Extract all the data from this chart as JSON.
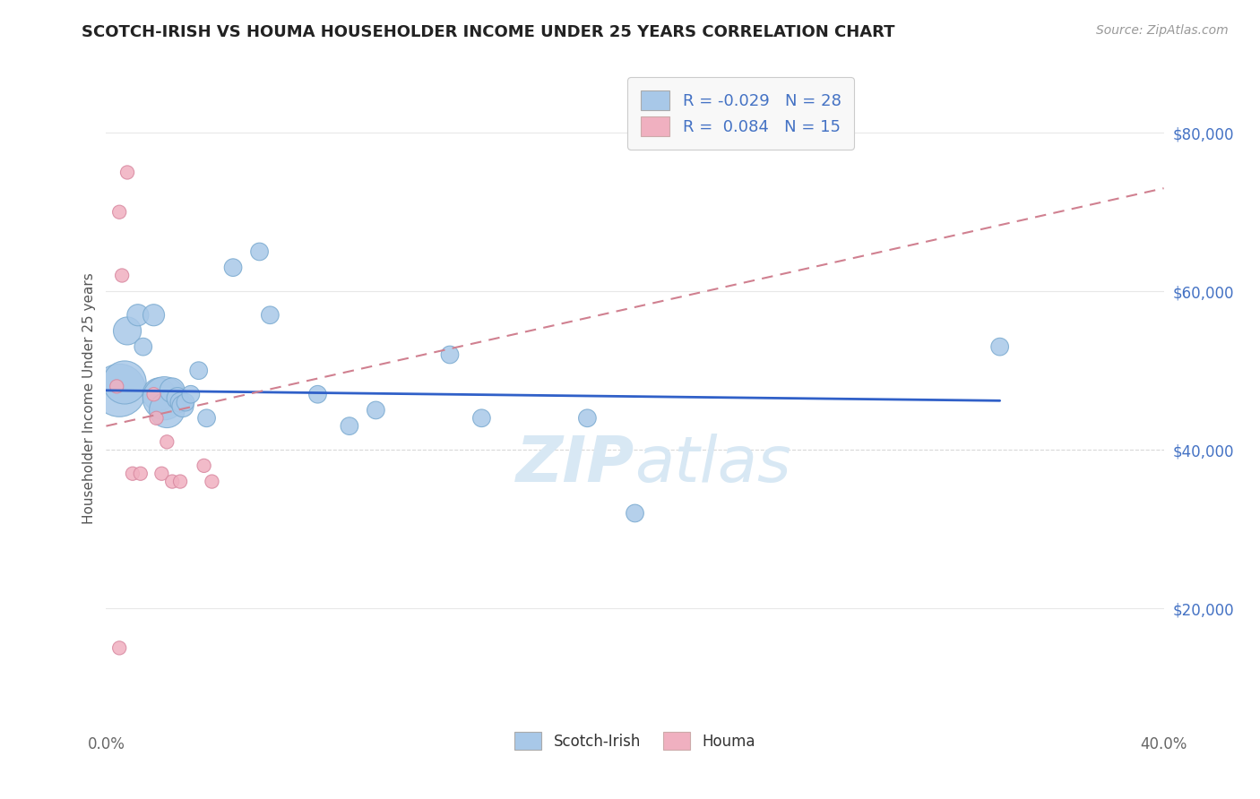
{
  "title": "SCOTCH-IRISH VS HOUMA HOUSEHOLDER INCOME UNDER 25 YEARS CORRELATION CHART",
  "source": "Source: ZipAtlas.com",
  "ylabel": "Householder Income Under 25 years",
  "ytick_labels": [
    "$20,000",
    "$40,000",
    "$60,000",
    "$80,000"
  ],
  "ytick_values": [
    20000,
    40000,
    60000,
    80000
  ],
  "xlim": [
    0.0,
    0.4
  ],
  "ylim": [
    5000,
    88000
  ],
  "legend_label1": "Scotch-Irish",
  "legend_label2": "Houma",
  "r1": "-0.029",
  "n1": "28",
  "r2": "0.084",
  "n2": "15",
  "scotch_irish_x": [
    0.005,
    0.007,
    0.008,
    0.012,
    0.014,
    0.018,
    0.02,
    0.022,
    0.023,
    0.025,
    0.027,
    0.028,
    0.029,
    0.03,
    0.032,
    0.035,
    0.038,
    0.048,
    0.058,
    0.062,
    0.08,
    0.092,
    0.102,
    0.13,
    0.142,
    0.182,
    0.2,
    0.338
  ],
  "scotch_irish_y": [
    47500,
    48500,
    55000,
    57000,
    53000,
    57000,
    47000,
    46500,
    45000,
    47500,
    46500,
    46000,
    45500,
    46000,
    47000,
    50000,
    44000,
    63000,
    65000,
    57000,
    47000,
    43000,
    45000,
    52000,
    44000,
    44000,
    32000,
    53000
  ],
  "scotch_irish_size": [
    1800,
    1200,
    500,
    300,
    200,
    300,
    700,
    1200,
    800,
    400,
    300,
    250,
    300,
    200,
    200,
    200,
    200,
    200,
    200,
    200,
    200,
    200,
    200,
    200,
    200,
    200,
    200,
    200
  ],
  "houma_x": [
    0.005,
    0.006,
    0.008,
    0.01,
    0.013,
    0.018,
    0.019,
    0.021,
    0.023,
    0.025,
    0.028,
    0.037,
    0.04,
    0.005,
    0.004
  ],
  "houma_y": [
    70000,
    62000,
    75000,
    37000,
    37000,
    47000,
    44000,
    37000,
    41000,
    36000,
    36000,
    38000,
    36000,
    15000,
    48000
  ],
  "houma_size": [
    120,
    120,
    120,
    120,
    120,
    120,
    120,
    120,
    120,
    120,
    120,
    120,
    120,
    120,
    120
  ],
  "blue_line_x": [
    0.0,
    0.338
  ],
  "blue_line_y": [
    47500,
    46200
  ],
  "pink_line_x": [
    0.0,
    0.4
  ],
  "pink_line_y": [
    43000,
    73000
  ],
  "scatter_blue": "#a8c8e8",
  "scatter_blue_edge": "#7aaad0",
  "scatter_pink": "#f0b0c0",
  "scatter_pink_edge": "#d888a0",
  "line_blue": "#3060c8",
  "line_pink": "#d08090",
  "bg_color": "#ffffff",
  "plot_bg_color": "#ffffff",
  "grid_color_solid": "#e8e8e8",
  "grid_color_dash": "#d8d8d8",
  "title_color": "#222222",
  "axis_label_color": "#555555",
  "ytick_color": "#4472c4",
  "xtick_color": "#666666",
  "watermark": "ZIPatlas",
  "watermark_color": "#d8e8f4",
  "legend_text_color": "#4472c4",
  "legend_box_color": "#f8f8f8"
}
